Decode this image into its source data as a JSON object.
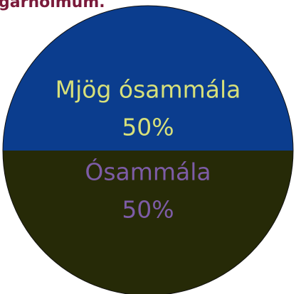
{
  "chart_data": {
    "type": "pie",
    "title": "garhölmum.",
    "categories": [
      "Mjög ósammála",
      "Ósammála"
    ],
    "values": [
      50,
      50
    ],
    "value_labels": [
      "50%",
      "50%"
    ],
    "colors": [
      "#0b3d8e",
      "#262a07"
    ],
    "label_colors": [
      "#d7e07a",
      "#7d5ca6"
    ]
  }
}
